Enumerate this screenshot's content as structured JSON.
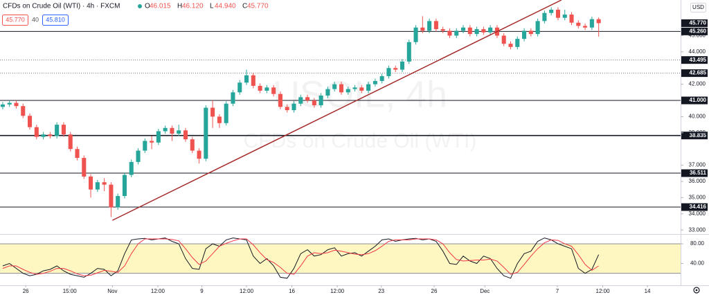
{
  "chart_data": {
    "type": "candlestick",
    "title": "CFDs on Crude Oil (WTI) · 4h · FXCM",
    "ohlc_legend": [
      {
        "key": "O",
        "label": "46.015"
      },
      {
        "key": "H",
        "label": "46.120"
      },
      {
        "key": "L",
        "label": "44.940"
      },
      {
        "key": "C",
        "label": "45.770"
      }
    ],
    "quote": {
      "sell": "45.770",
      "spread": "40",
      "buy": "45.810"
    },
    "currency": "USD",
    "watermark": [
      "USOIL, 4h",
      "CFDs on Crude Oil (WTI)"
    ],
    "up_color": "#26a69a",
    "down_color": "#ef5350",
    "xlim": [
      -0.4,
      100.1
    ],
    "xticks": [
      {
        "value": 3.4,
        "label": "26"
      },
      {
        "value": 9.9,
        "label": "15:00"
      },
      {
        "value": 16.2,
        "label": "Nov"
      },
      {
        "value": 22.9,
        "label": "12:00"
      },
      {
        "value": 29.4,
        "label": "9"
      },
      {
        "value": 36,
        "label": "12:00"
      },
      {
        "value": 42.7,
        "label": "16"
      },
      {
        "value": 49.4,
        "label": "12:00"
      },
      {
        "value": 55.9,
        "label": "23"
      },
      {
        "value": 63.7,
        "label": "26"
      },
      {
        "value": 71.2,
        "label": "Dec"
      },
      {
        "value": 81.9,
        "label": "7"
      },
      {
        "value": 88.6,
        "label": "12:00"
      },
      {
        "value": 95.2,
        "label": "14"
      }
    ],
    "ylim": [
      32.75,
      47.2
    ],
    "yticks": [
      {
        "value": 33,
        "label": "33.000"
      },
      {
        "value": 34,
        "label": "34.000"
      },
      {
        "value": 35,
        "label": "35.000"
      },
      {
        "value": 36,
        "label": "36.000"
      },
      {
        "value": 37,
        "label": "37.000"
      },
      {
        "value": 39,
        "label": "39.000"
      },
      {
        "value": 40,
        "label": "40.000"
      },
      {
        "value": 42,
        "label": "42.000"
      },
      {
        "value": 44,
        "label": "44.000"
      },
      {
        "value": 45,
        "label": "45.000"
      }
    ],
    "open": [
      40.6,
      40.75,
      40.85,
      40.65,
      40.05,
      39.35,
      38.75,
      38.9,
      38.8,
      39.5,
      38.9,
      38.0,
      37.45,
      36.3,
      35.5,
      35.95,
      35.8,
      34.4,
      35.1,
      36.4,
      37.2,
      37.9,
      38.5,
      38.4,
      39.1,
      39.3,
      38.95,
      39.15,
      38.6,
      37.9,
      37.4,
      40.55,
      40.0,
      39.6,
      40.8,
      41.5,
      42.1,
      42.55,
      41.9,
      41.6,
      41.8,
      41.4,
      40.6,
      40.4,
      40.8,
      41.2,
      41.0,
      40.7,
      41.3,
      41.7,
      42.0,
      41.5,
      41.7,
      41.8,
      41.6,
      42.0,
      42.2,
      42.5,
      43.0,
      42.9,
      43.4,
      44.6,
      45.5,
      45.3,
      45.9,
      45.4,
      45.3,
      45.0,
      45.3,
      45.5,
      45.1,
      45.4,
      45.2,
      45.5,
      45.0,
      44.5,
      44.3,
      44.8,
      45.3,
      45.1,
      45.9,
      46.4,
      46.6,
      46.1,
      46.3,
      45.8,
      45.6,
      45.5,
      46.015
    ],
    "high": [
      40.9,
      41.0,
      41.0,
      40.8,
      40.2,
      39.5,
      39.05,
      39.05,
      39.65,
      39.65,
      39.05,
      38.15,
      37.6,
      36.45,
      36.1,
      36.2,
      35.95,
      35.25,
      36.55,
      37.35,
      38.05,
      38.65,
      38.8,
      39.25,
      39.45,
      39.45,
      39.5,
      39.3,
      38.75,
      38.05,
      40.7,
      41.0,
      40.15,
      40.95,
      41.65,
      42.25,
      42.9,
      42.7,
      42.05,
      41.95,
      41.95,
      41.55,
      40.75,
      40.95,
      41.35,
      41.35,
      41.15,
      41.45,
      41.85,
      42.15,
      42.15,
      41.85,
      41.95,
      41.95,
      42.15,
      42.35,
      42.65,
      43.15,
      43.15,
      43.55,
      44.75,
      45.65,
      46.2,
      46.05,
      46.05,
      45.55,
      45.45,
      45.45,
      45.65,
      45.65,
      45.55,
      45.55,
      45.65,
      45.65,
      45.15,
      44.65,
      44.95,
      45.45,
      45.45,
      46.05,
      46.55,
      46.75,
      46.75,
      46.6,
      46.45,
      45.95,
      45.75,
      46.17,
      46.12
    ],
    "low": [
      40.45,
      40.6,
      40.5,
      39.9,
      39.2,
      38.6,
      38.6,
      38.65,
      38.65,
      38.75,
      37.85,
      37.3,
      36.15,
      35.0,
      35.35,
      35.4,
      33.8,
      34.25,
      34.95,
      36.25,
      37.05,
      37.75,
      38.0,
      38.25,
      38.95,
      38.5,
      38.8,
      38.45,
      37.75,
      37.1,
      37.25,
      39.3,
      39.3,
      39.45,
      40.65,
      41.35,
      41.95,
      41.75,
      41.45,
      41.45,
      41.25,
      40.45,
      40.25,
      40.25,
      40.65,
      40.85,
      40.55,
      40.55,
      41.15,
      41.55,
      41.35,
      41.35,
      41.55,
      41.45,
      41.45,
      41.85,
      42.05,
      42.35,
      42.75,
      42.75,
      43.25,
      44.45,
      45.15,
      45.15,
      45.25,
      45.15,
      44.85,
      44.85,
      45.15,
      44.95,
      44.95,
      45.05,
      45.05,
      44.85,
      44.35,
      44.15,
      44.15,
      44.65,
      44.95,
      44.95,
      45.75,
      46.25,
      45.95,
      45.95,
      45.65,
      45.45,
      45.35,
      45.35,
      44.94
    ],
    "close": [
      40.75,
      40.85,
      40.65,
      40.05,
      39.35,
      38.75,
      38.9,
      38.8,
      39.5,
      38.9,
      38.0,
      37.45,
      36.3,
      35.5,
      35.95,
      35.8,
      34.4,
      35.1,
      36.4,
      37.2,
      37.9,
      38.5,
      38.4,
      39.1,
      39.3,
      38.95,
      39.15,
      38.6,
      37.9,
      37.4,
      40.55,
      40.0,
      39.6,
      40.8,
      41.5,
      42.1,
      42.55,
      41.9,
      41.6,
      41.8,
      41.4,
      40.6,
      40.4,
      40.8,
      41.2,
      41.0,
      40.7,
      41.3,
      41.7,
      42.0,
      41.5,
      41.7,
      41.8,
      41.6,
      42.0,
      42.2,
      42.5,
      43.0,
      42.9,
      43.4,
      44.6,
      45.5,
      45.3,
      45.9,
      45.4,
      45.3,
      45.0,
      45.3,
      45.5,
      45.1,
      45.4,
      45.2,
      45.5,
      45.0,
      44.5,
      44.3,
      44.8,
      45.3,
      45.1,
      45.9,
      46.4,
      46.6,
      46.1,
      46.3,
      45.8,
      45.6,
      45.5,
      46.02,
      45.77
    ],
    "levels": [
      {
        "value": 45.26,
        "label": "45.260",
        "style": "solid",
        "width": 1
      },
      {
        "value": 43.495,
        "label": "43.495",
        "style": "dotted",
        "width": 1
      },
      {
        "value": 42.685,
        "label": "42.685",
        "style": "dotted",
        "width": 1
      },
      {
        "value": 41,
        "label": "41.000",
        "style": "solid",
        "width": 1
      },
      {
        "value": 38.835,
        "label": "38.835",
        "style": "solid",
        "width": 1.6
      },
      {
        "value": 36.511,
        "label": "36.511",
        "style": "solid",
        "width": 1
      },
      {
        "value": 34.416,
        "label": "34.416",
        "style": "solid",
        "width": 1
      }
    ],
    "last": {
      "value": 45.77,
      "label": "45.770"
    },
    "trendline": {
      "x": [
        16.2,
        82.5
      ],
      "y": [
        33.6,
        47.2
      ],
      "color": "#a52a2a"
    },
    "indicator": {
      "ylim": [
        -3,
        97
      ],
      "yticks": [
        {
          "value": 40,
          "label": "40.00"
        },
        {
          "value": 80,
          "label": "80.00"
        }
      ],
      "band": [
        20,
        80
      ],
      "band_color": "#fff7c2",
      "series": [
        {
          "color": "#131722",
          "values": [
            35,
            40,
            30,
            20,
            15,
            18,
            25,
            28,
            35,
            25,
            18,
            15,
            12,
            20,
            30,
            28,
            15,
            25,
            60,
            88,
            90,
            91,
            88,
            90,
            92,
            85,
            80,
            50,
            30,
            28,
            70,
            80,
            75,
            88,
            92,
            90,
            88,
            55,
            40,
            50,
            35,
            12,
            10,
            30,
            60,
            68,
            55,
            58,
            68,
            72,
            55,
            60,
            62,
            55,
            65,
            75,
            88,
            90,
            85,
            88,
            90,
            91,
            88,
            90,
            85,
            65,
            40,
            38,
            55,
            45,
            40,
            55,
            50,
            30,
            15,
            10,
            40,
            60,
            65,
            85,
            92,
            88,
            80,
            75,
            70,
            30,
            20,
            28,
            58
          ]
        },
        {
          "color": "#f23645",
          "values": [
            30,
            35,
            35,
            28,
            22,
            18,
            20,
            24,
            30,
            30,
            25,
            19,
            15,
            16,
            21,
            26,
            24,
            22,
            35,
            60,
            80,
            90,
            90,
            90,
            90,
            89,
            86,
            70,
            52,
            38,
            45,
            60,
            75,
            81,
            86,
            90,
            90,
            78,
            62,
            48,
            42,
            32,
            20,
            18,
            35,
            55,
            62,
            60,
            62,
            67,
            65,
            62,
            59,
            58,
            60,
            66,
            75,
            85,
            88,
            88,
            88,
            90,
            90,
            90,
            88,
            80,
            62,
            48,
            45,
            46,
            47,
            47,
            49,
            45,
            32,
            18,
            22,
            38,
            55,
            70,
            82,
            88,
            87,
            80,
            75,
            58,
            38,
            26,
            35
          ]
        }
      ]
    }
  }
}
